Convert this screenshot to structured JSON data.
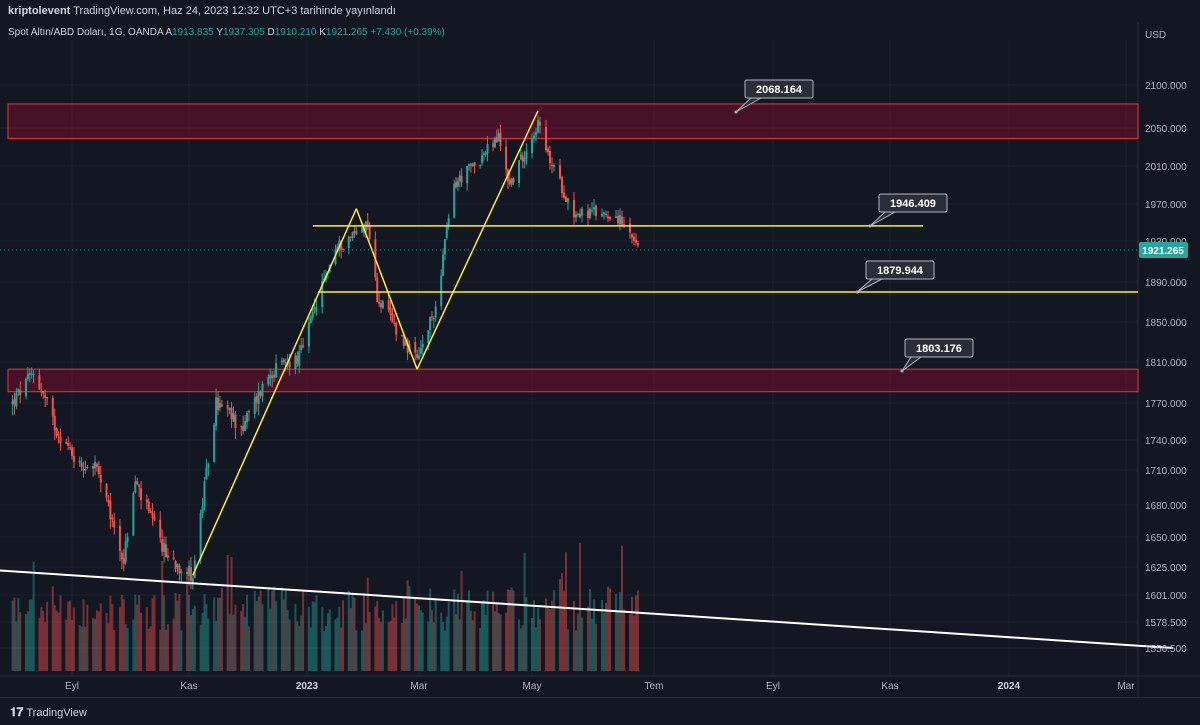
{
  "header": {
    "author": "kriptolevent",
    "published": "TradingView.com, Haz 24, 2023 12:32 UTC+3 tarihinde yayınlandı"
  },
  "legend": {
    "symbol": "Spot Altın/ABD Doları, 1G, OANDA",
    "open_label": "A",
    "open": "1913.835",
    "high_label": "Y",
    "high": "1937.305",
    "low_label": "D",
    "low": "1910.210",
    "close_label": "K",
    "close": "1921.265",
    "change": "+7.430 (+0.39%)"
  },
  "footer": {
    "brand": "TradingView"
  },
  "chart_data": {
    "type": "candlestick",
    "currency": "USD",
    "y_ticks": [
      "2100.000",
      "2050.000",
      "2010.000",
      "1970.000",
      "1930.000",
      "1890.000",
      "1850.000",
      "1810.000",
      "1770.000",
      "1740.000",
      "1710.000",
      "1680.000",
      "1650.000",
      "1625.000",
      "1601.000",
      "1578.500",
      "1556.500"
    ],
    "x_ticks": [
      "Eyl",
      "Kas",
      "2023",
      "Mar",
      "May",
      "Tem",
      "Eyl",
      "Kas",
      "2024",
      "Mar"
    ],
    "last_price": "1921.265",
    "horizontal_levels": [
      {
        "label": "2068.164",
        "value": 2068.164
      },
      {
        "label": "1946.409",
        "value": 1946.409
      },
      {
        "label": "1879.944",
        "value": 1879.944
      },
      {
        "label": "1803.176",
        "value": 1803.176
      }
    ],
    "resistance_zone": [
      2039,
      2078
    ],
    "support_zone": [
      1781,
      1803
    ],
    "price_path": [
      [
        "2022-08-01",
        1770
      ],
      [
        "2022-08-12",
        1800
      ],
      [
        "2022-08-22",
        1755
      ],
      [
        "2022-09-05",
        1715
      ],
      [
        "2022-09-13",
        1715
      ],
      [
        "2022-09-28",
        1630
      ],
      [
        "2022-10-04",
        1700
      ],
      [
        "2022-10-20",
        1635
      ],
      [
        "2022-11-03",
        1618
      ],
      [
        "2022-11-15",
        1770
      ],
      [
        "2022-11-29",
        1750
      ],
      [
        "2022-12-13",
        1800
      ],
      [
        "2022-12-28",
        1815
      ],
      [
        "2023-01-15",
        1920
      ],
      [
        "2023-02-02",
        1950
      ],
      [
        "2023-02-07",
        1875
      ],
      [
        "2023-02-28",
        1810
      ],
      [
        "2023-03-10",
        1865
      ],
      [
        "2023-03-20",
        1990
      ],
      [
        "2023-04-04",
        2020
      ],
      [
        "2023-04-13",
        2040
      ],
      [
        "2023-04-19",
        1990
      ],
      [
        "2023-05-04",
        2055
      ],
      [
        "2023-05-08",
        2025
      ],
      [
        "2023-05-22",
        1960
      ],
      [
        "2023-06-05",
        1960
      ],
      [
        "2023-06-12",
        1958
      ],
      [
        "2023-06-23",
        1921
      ]
    ],
    "trend_lines": [
      {
        "from": [
          "2022-11-03",
          1618
        ],
        "to": [
          "2023-01-27",
          1965
        ]
      },
      {
        "from": [
          "2023-01-27",
          1965
        ],
        "to": [
          "2023-02-28",
          1803
        ]
      },
      {
        "from": [
          "2023-02-28",
          1803
        ],
        "to": [
          "2023-05-04",
          2070
        ]
      },
      {
        "from": [
          "2022-07-25",
          1622
        ],
        "to": [
          "2024-03-25",
          1556.5
        ]
      }
    ]
  }
}
